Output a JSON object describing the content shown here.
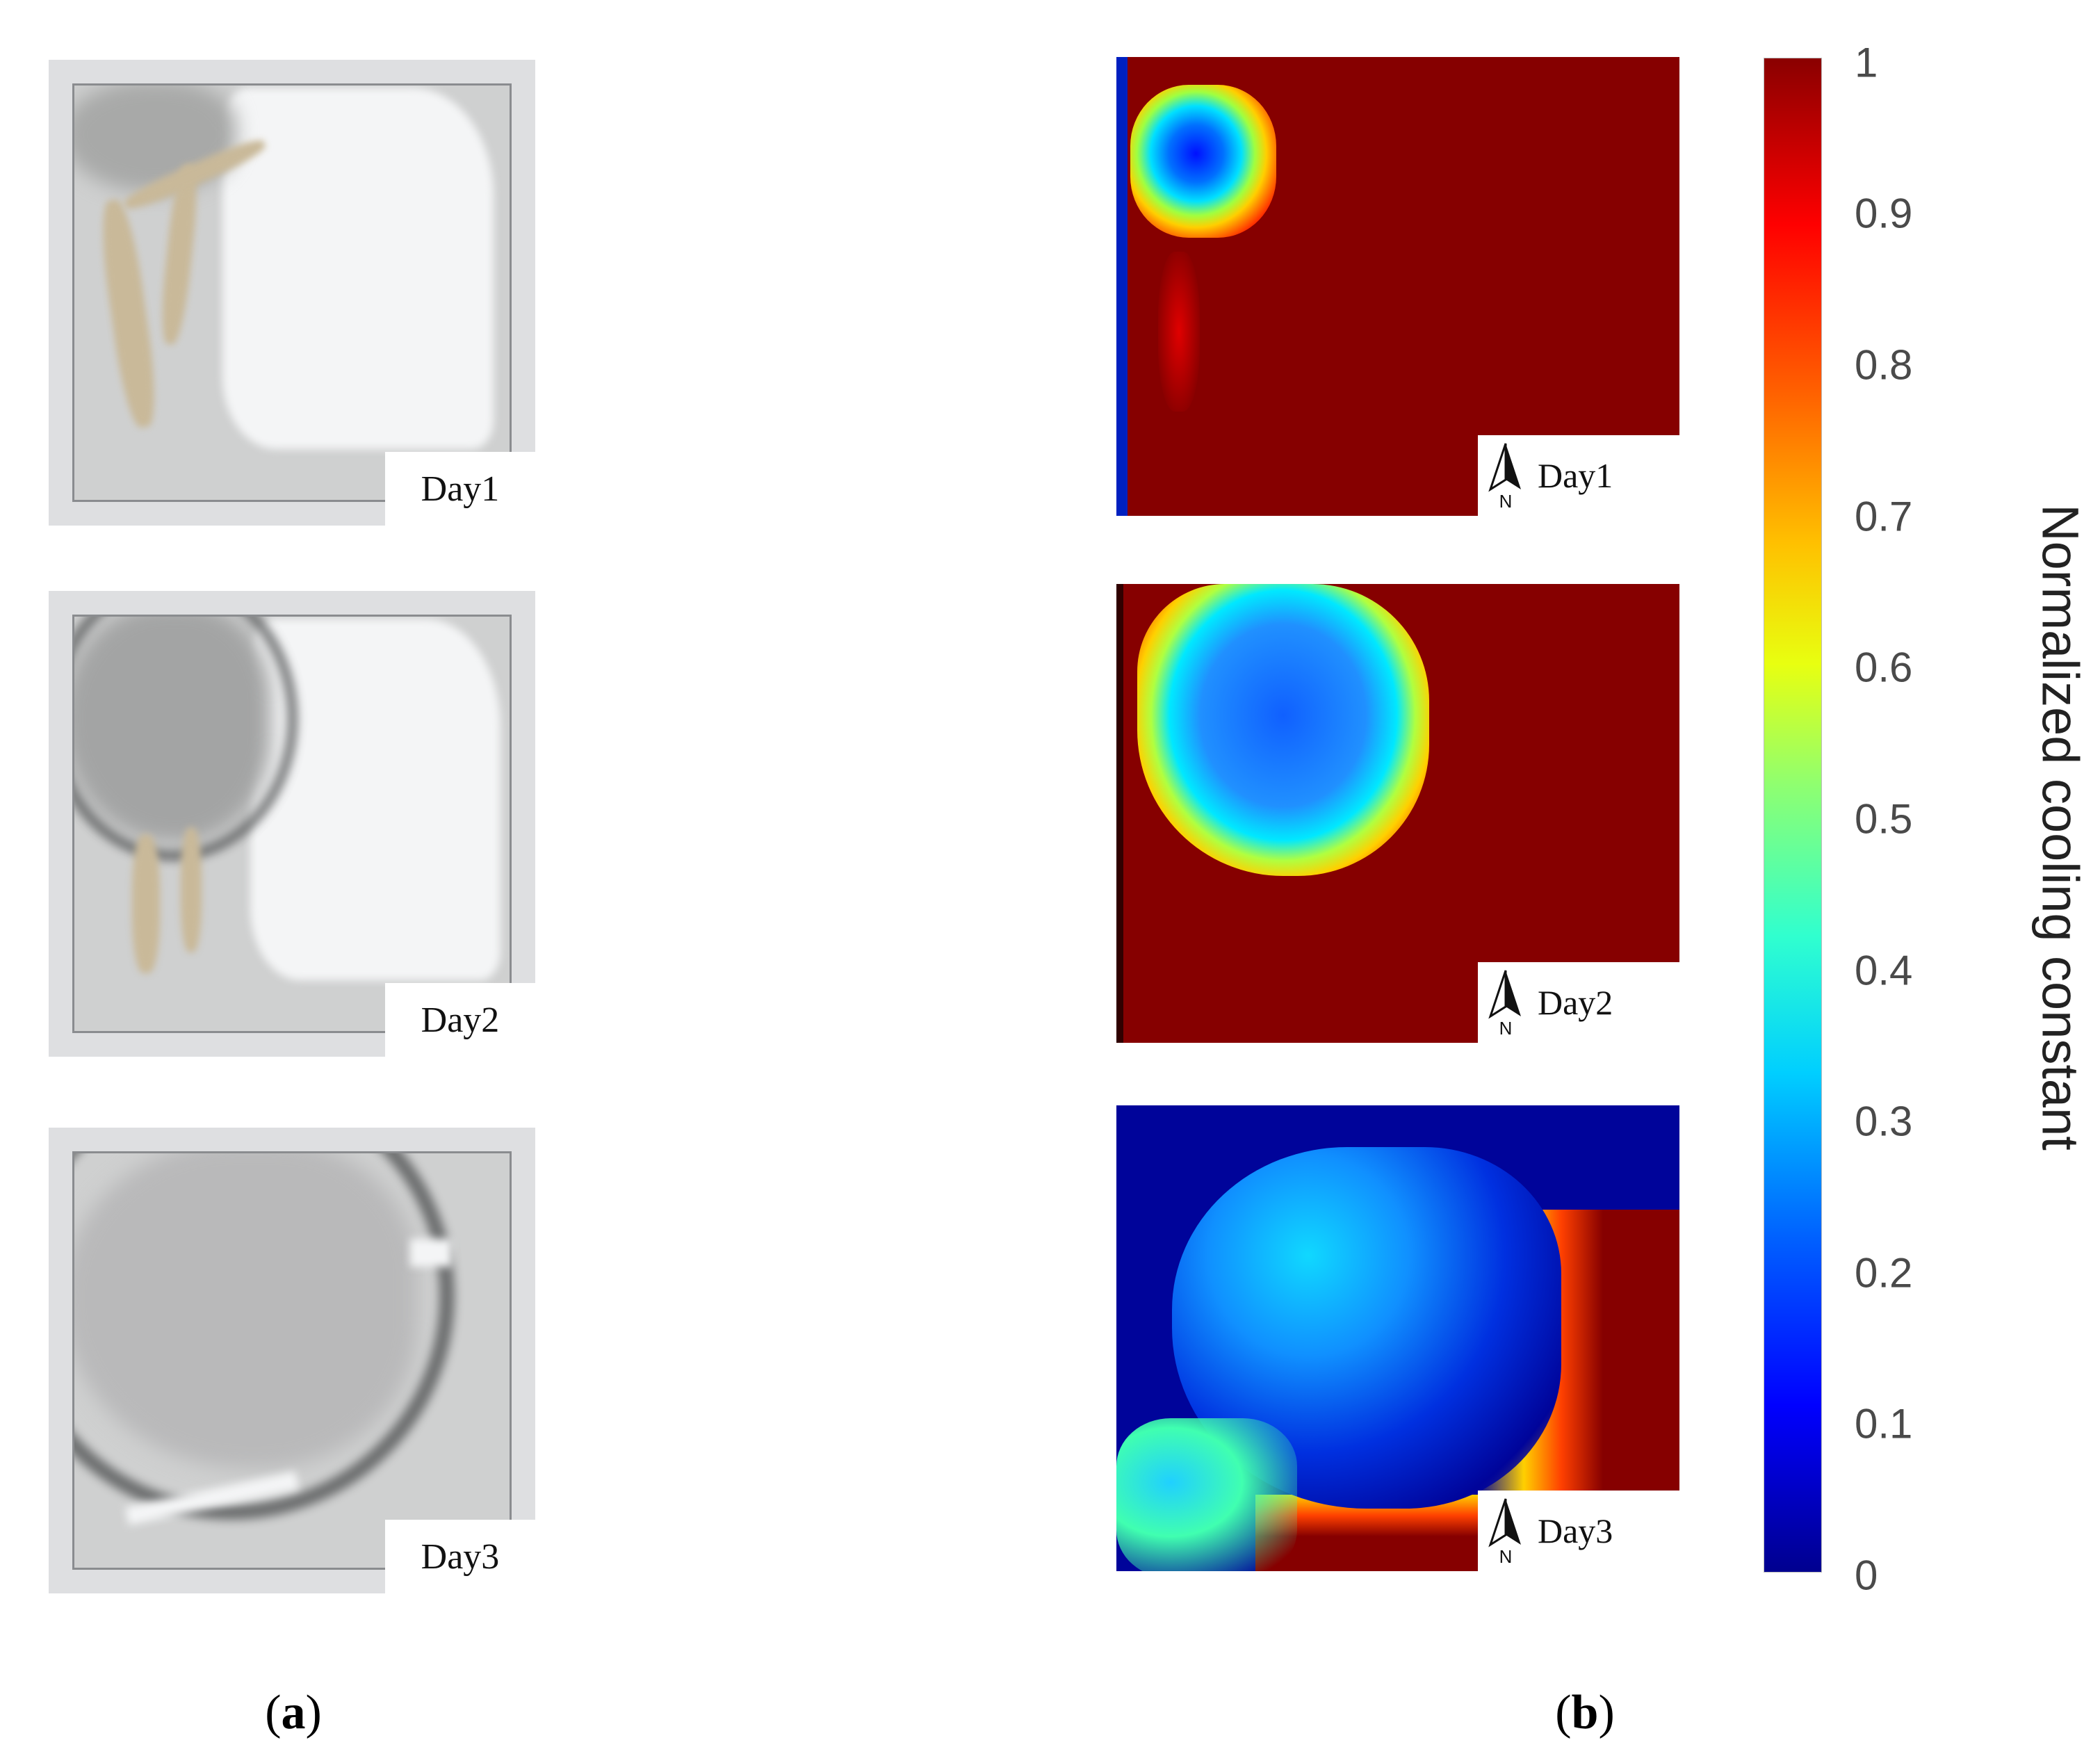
{
  "photos": [
    {
      "label": "Day1"
    },
    {
      "label": "Day2"
    },
    {
      "label": "Day3"
    }
  ],
  "maps": [
    {
      "label": "Day1",
      "north_label": "N"
    },
    {
      "label": "Day2",
      "north_label": "N"
    },
    {
      "label": "Day3",
      "north_label": "N"
    }
  ],
  "colorbar": {
    "title": "Normalized cooling constant",
    "ticks": [
      "1",
      "0.9",
      "0.8",
      "0.7",
      "0.6",
      "0.5",
      "0.4",
      "0.3",
      "0.2",
      "0.1",
      "0"
    ],
    "colormap": "jet",
    "range": [
      0,
      1
    ]
  },
  "panel_labels": {
    "a_open": "(",
    "a_letter": "a",
    "a_close": ")",
    "b_open": "(",
    "b_letter": "b",
    "b_close": ")"
  },
  "colors": {
    "map_high": "#860000",
    "map_low": "#00008f"
  }
}
